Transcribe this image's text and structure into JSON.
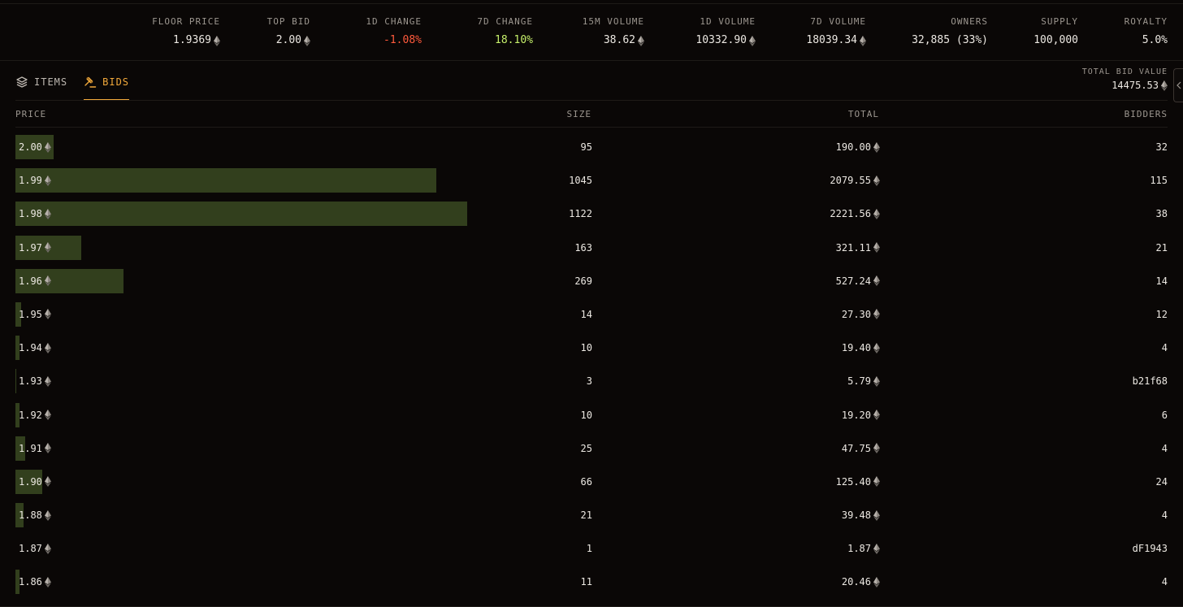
{
  "stats": [
    {
      "label": "FLOOR PRICE",
      "value": "1.9369",
      "eth": true,
      "tone": ""
    },
    {
      "label": "TOP BID",
      "value": "2.00",
      "eth": true,
      "tone": ""
    },
    {
      "label": "1D CHANGE",
      "value": "-1.08%",
      "eth": false,
      "tone": "neg"
    },
    {
      "label": "7D CHANGE",
      "value": "18.10%",
      "eth": false,
      "tone": "pos"
    },
    {
      "label": "15M VOLUME",
      "value": "38.62",
      "eth": true,
      "tone": ""
    },
    {
      "label": "1D VOLUME",
      "value": "10332.90",
      "eth": true,
      "tone": ""
    },
    {
      "label": "7D VOLUME",
      "value": "18039.34",
      "eth": true,
      "tone": ""
    },
    {
      "label": "OWNERS",
      "value": "32,885 (33%)",
      "eth": false,
      "tone": ""
    },
    {
      "label": "SUPPLY",
      "value": "100,000",
      "eth": false,
      "tone": ""
    },
    {
      "label": "ROYALTY",
      "value": "5.0%",
      "eth": false,
      "tone": ""
    }
  ],
  "tabs": {
    "items_label": "ITEMS",
    "bids_label": "BIDS",
    "active": "bids"
  },
  "total_bid": {
    "label": "TOTAL BID VALUE",
    "value": "14475.53"
  },
  "columns": {
    "price": "PRICE",
    "size": "SIZE",
    "total": "TOTAL",
    "bidders": "BIDDERS"
  },
  "depth": {
    "max_size": 1122
  },
  "colors": {
    "accent": "#f2a93b",
    "negative": "#ff5a3c",
    "positive": "#c6f06b",
    "depth_bar": "#323f1d"
  },
  "bids": [
    {
      "price": "1.99",
      "size": "1045",
      "total": "2079.55",
      "bidders": "115"
    },
    {
      "price": "1.98",
      "size": "1122",
      "total": "2221.56",
      "bidders": "38"
    },
    {
      "price": "1.97",
      "size": "163",
      "total": "321.11",
      "bidders": "21"
    },
    {
      "price": "1.96",
      "size": "269",
      "total": "527.24",
      "bidders": "14"
    },
    {
      "price": "1.95",
      "size": "14",
      "total": "27.30",
      "bidders": "12"
    },
    {
      "price": "1.94",
      "size": "10",
      "total": "19.40",
      "bidders": "4"
    },
    {
      "price": "1.93",
      "size": "3",
      "total": "5.79",
      "bidders": "b21f68"
    },
    {
      "price": "1.92",
      "size": "10",
      "total": "19.20",
      "bidders": "6"
    },
    {
      "price": "1.91",
      "size": "25",
      "total": "47.75",
      "bidders": "4"
    },
    {
      "price": "1.90",
      "size": "66",
      "total": "125.40",
      "bidders": "24"
    },
    {
      "price": "1.88",
      "size": "21",
      "total": "39.48",
      "bidders": "4"
    },
    {
      "price": "1.87",
      "size": "1",
      "total": "1.87",
      "bidders": "dF1943"
    },
    {
      "price": "1.86",
      "size": "11",
      "total": "20.46",
      "bidders": "4"
    }
  ],
  "top_bid_row": {
    "price": "2.00",
    "size": "95",
    "total": "190.00",
    "bidders": "32"
  }
}
